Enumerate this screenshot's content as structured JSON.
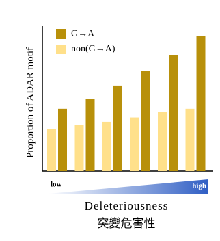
{
  "chart_data": {
    "type": "bar",
    "ylabel": "Proportion of ADAR motif",
    "xlabel": "Deleteriousness",
    "xlabel_secondary": "突變危害性",
    "gradient_labels": {
      "low": "low",
      "high": "high"
    },
    "categories": [
      null,
      null,
      null,
      null,
      null,
      null
    ],
    "series": [
      {
        "name": "G→A",
        "color": "#b8900a",
        "values": [
          43,
          50,
          59,
          69,
          80,
          93
        ]
      },
      {
        "name": "non(G→A)",
        "color": "#ffe08a",
        "values": [
          29,
          32,
          34,
          37,
          41,
          43
        ]
      }
    ],
    "ylim": [
      0,
      100
    ],
    "legend": "upper left"
  }
}
